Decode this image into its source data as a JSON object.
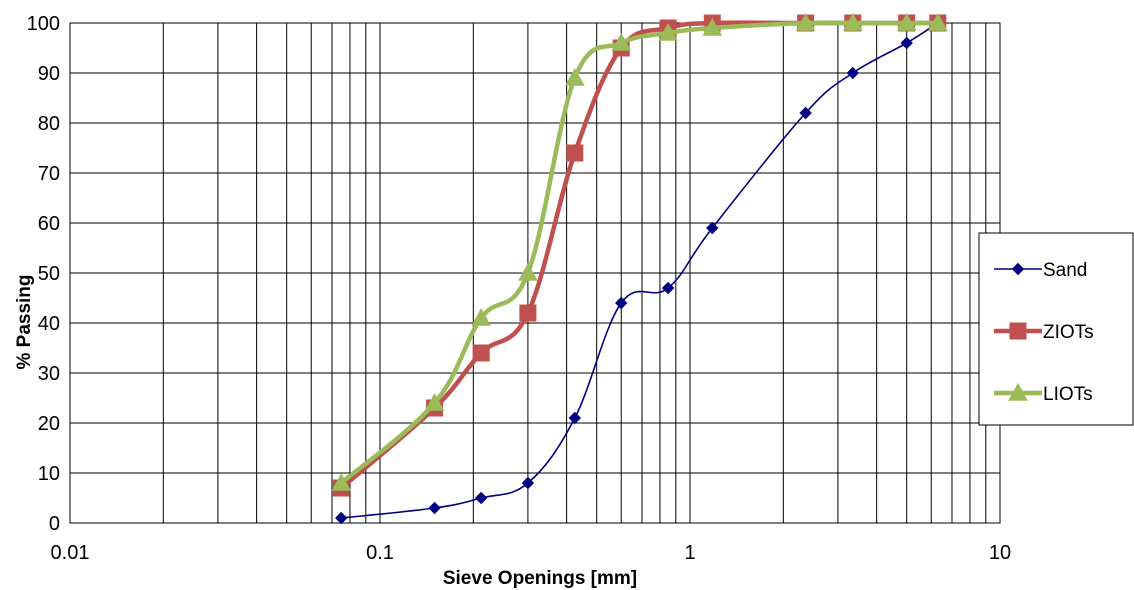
{
  "chart_data": {
    "type": "scatter",
    "title": "",
    "xlabel": "Sieve Openings [mm]",
    "ylabel": "% Passing",
    "xscale": "log",
    "xlim": [
      0.01,
      10
    ],
    "ylim": [
      0,
      100
    ],
    "grid": true,
    "legend_position": "right",
    "x_tick_labels": [
      "0.01",
      "0.1",
      "1",
      "10"
    ],
    "y_tick_labels": [
      "0",
      "10",
      "20",
      "30",
      "40",
      "50",
      "60",
      "70",
      "80",
      "90",
      "100"
    ],
    "series": [
      {
        "name": "Sand",
        "color": "#000080",
        "marker": "diamond",
        "x": [
          0.075,
          0.15,
          0.212,
          0.3,
          0.425,
          0.6,
          0.85,
          1.18,
          2.36,
          3.35,
          5.0,
          6.3
        ],
        "y": [
          1,
          3,
          5,
          8,
          21,
          44,
          47,
          59,
          82,
          90,
          96,
          100
        ]
      },
      {
        "name": "ZIOTs",
        "color": "#C0504D",
        "marker": "square",
        "x": [
          0.075,
          0.15,
          0.212,
          0.3,
          0.425,
          0.6,
          0.85,
          1.18,
          2.36,
          3.35,
          5.0,
          6.3
        ],
        "y": [
          7,
          23,
          34,
          42,
          74,
          95,
          99,
          100,
          100,
          100,
          100,
          100
        ]
      },
      {
        "name": "LIOTs",
        "color": "#9BBB59",
        "marker": "triangle",
        "x": [
          0.075,
          0.15,
          0.212,
          0.3,
          0.425,
          0.6,
          0.85,
          1.18,
          2.36,
          3.35,
          5.0,
          6.3
        ],
        "y": [
          8,
          24,
          41,
          50,
          89,
          96,
          98,
          99,
          100,
          100,
          100,
          100
        ]
      }
    ]
  }
}
